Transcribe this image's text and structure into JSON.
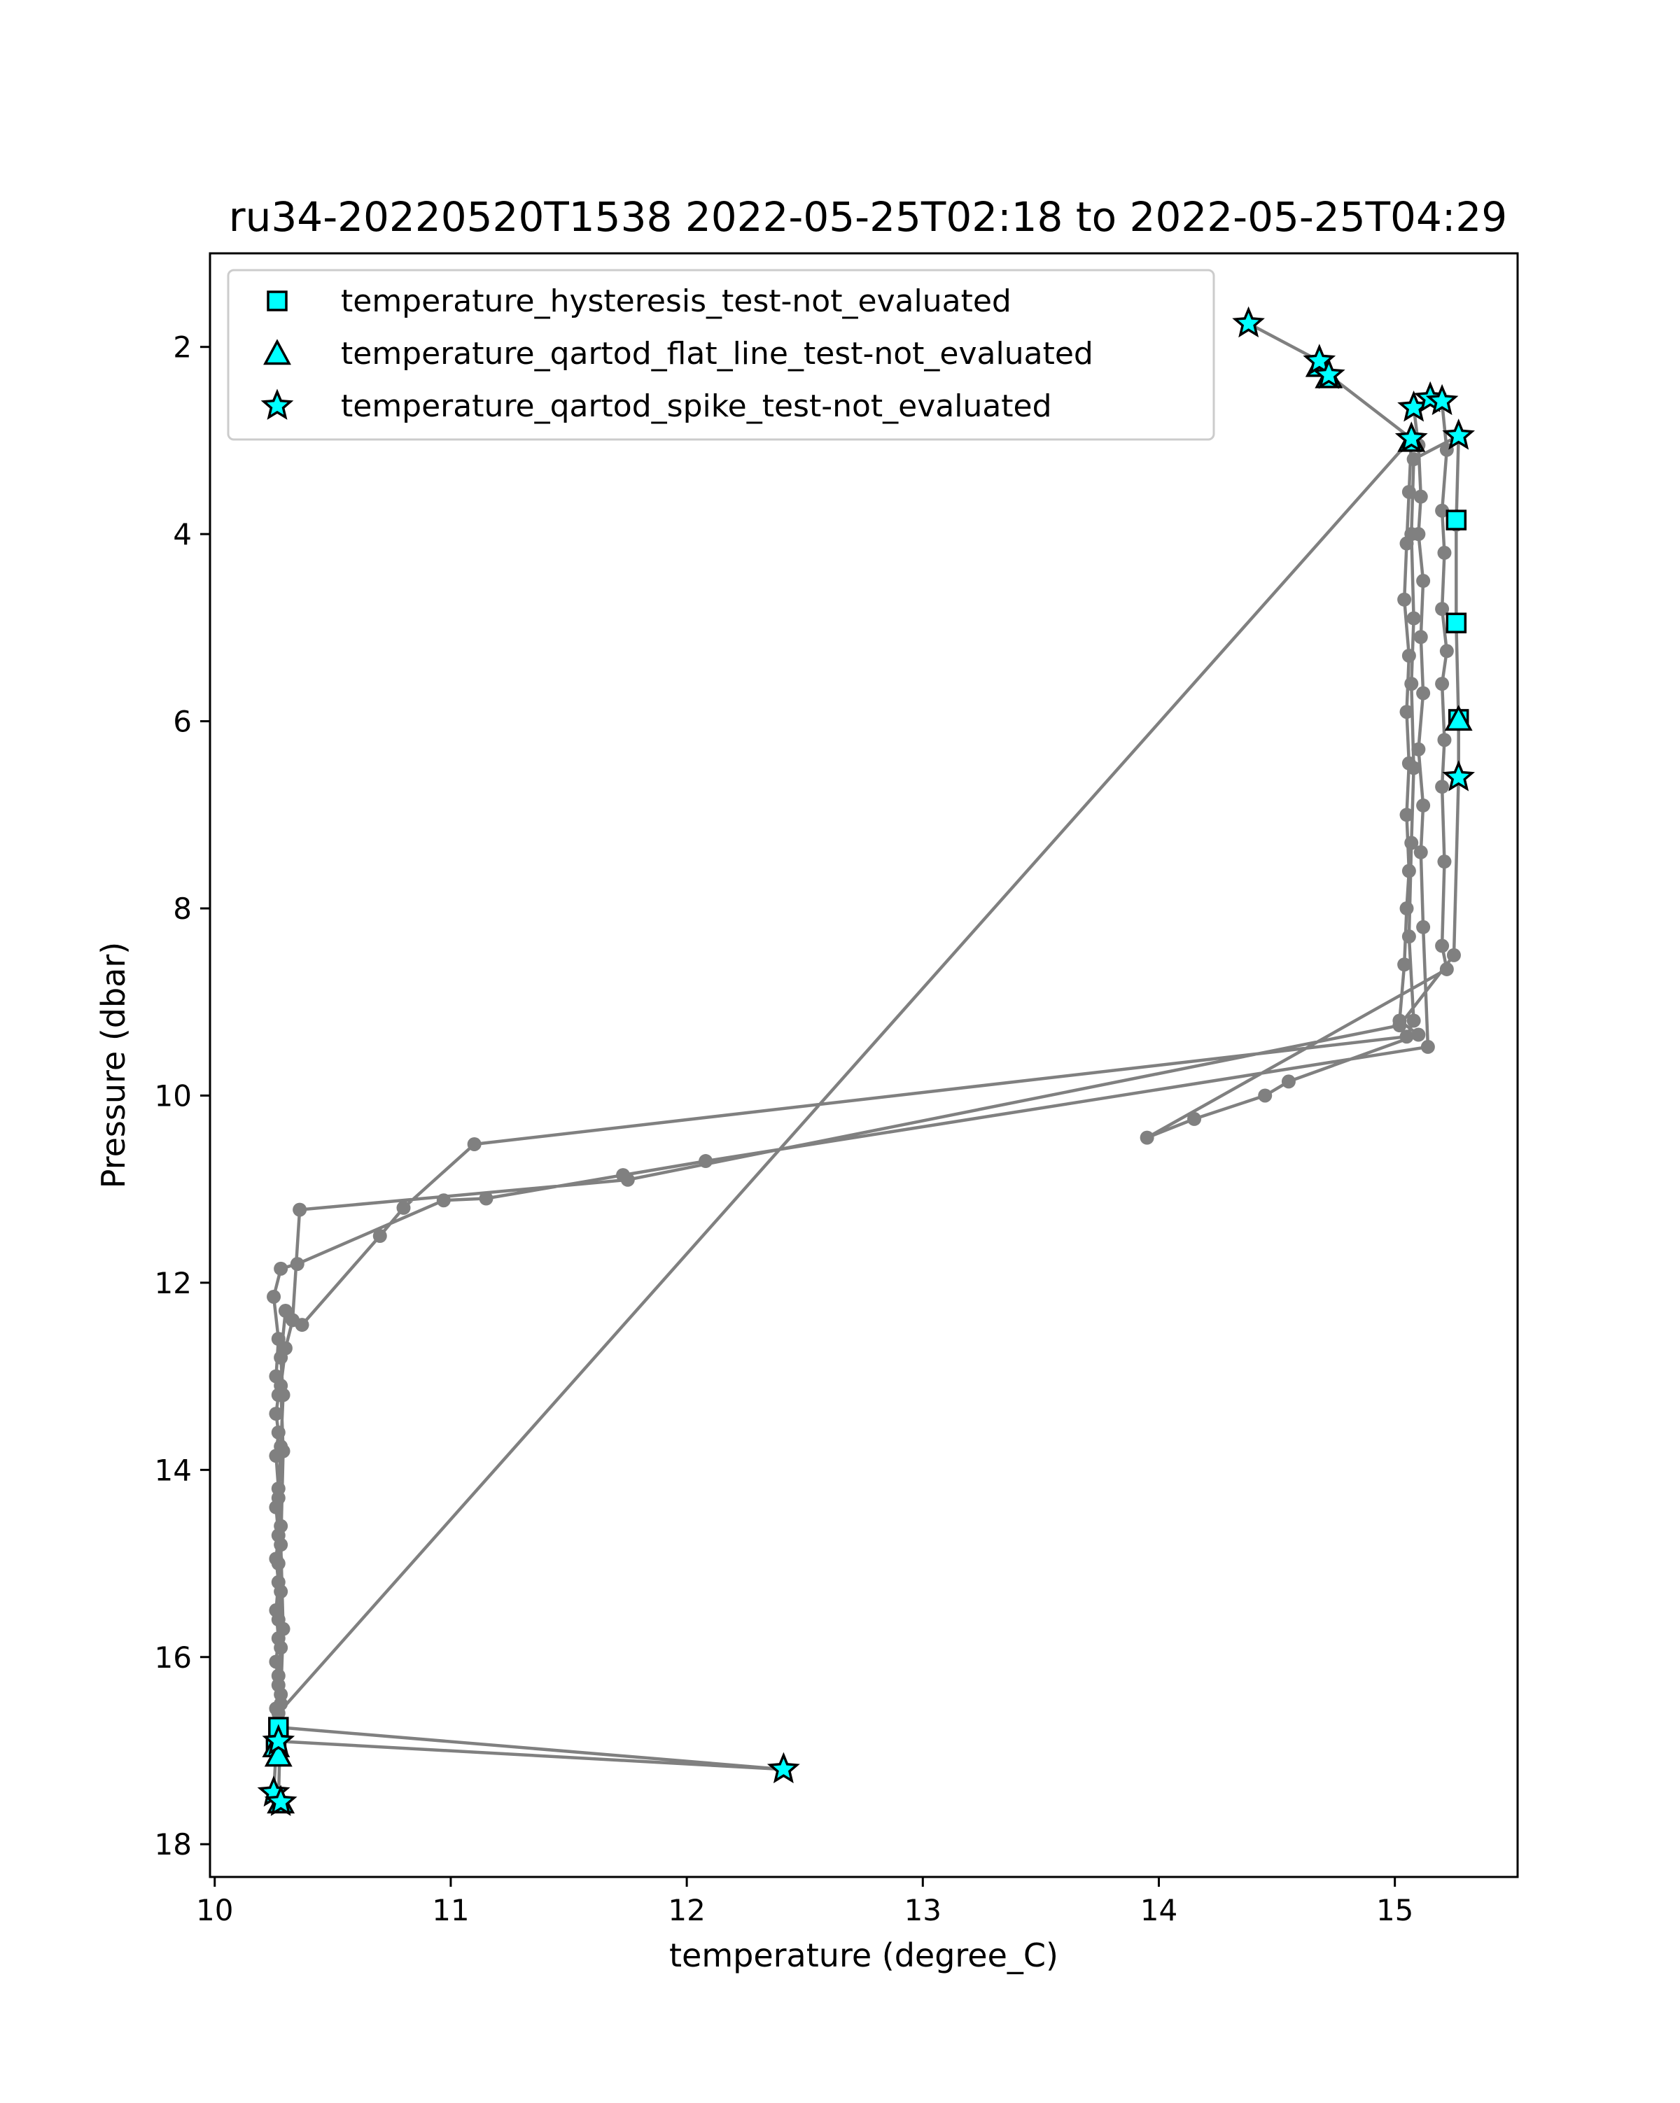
{
  "chart_data": {
    "type": "scatter",
    "title": "ru34-20220520T1538 2022-05-25T02:18 to 2022-05-25T04:29",
    "xlabel": "temperature (degree_C)",
    "ylabel": "Pressure (dbar)",
    "xlim": [
      9.98,
      15.52
    ],
    "ylim": [
      18.35,
      1.0
    ],
    "y_inverted": true,
    "x_ticks": [
      10,
      11,
      12,
      13,
      14,
      15
    ],
    "y_ticks": [
      2,
      4,
      6,
      8,
      10,
      12,
      14,
      16,
      18
    ],
    "grid": false,
    "legend_position": "top-left",
    "colors": {
      "profile": "#808080",
      "marker_fill": "#00ffff",
      "marker_edge": "#000000"
    },
    "profile": {
      "name": "",
      "path": [
        [
          14.38,
          1.75
        ],
        [
          14.68,
          2.15
        ],
        [
          14.72,
          2.3
        ],
        [
          15.07,
          2.98
        ],
        [
          15.06,
          3.55
        ],
        [
          15.05,
          4.1
        ],
        [
          15.04,
          4.7
        ],
        [
          15.06,
          5.3
        ],
        [
          15.05,
          5.9
        ],
        [
          15.06,
          6.45
        ],
        [
          15.05,
          7.0
        ],
        [
          15.06,
          7.6
        ],
        [
          15.05,
          8.0
        ],
        [
          15.04,
          8.6
        ],
        [
          15.02,
          9.2
        ],
        [
          15.1,
          9.35
        ],
        [
          14.55,
          9.85
        ],
        [
          14.45,
          10.0
        ],
        [
          14.15,
          10.25
        ],
        [
          13.95,
          10.45
        ],
        [
          15.22,
          8.65
        ],
        [
          15.2,
          8.4
        ],
        [
          15.21,
          7.5
        ],
        [
          15.2,
          6.7
        ],
        [
          15.21,
          6.2
        ],
        [
          15.2,
          5.6
        ],
        [
          15.22,
          5.25
        ],
        [
          15.2,
          4.8
        ],
        [
          15.21,
          4.2
        ],
        [
          15.2,
          3.75
        ],
        [
          15.22,
          3.1
        ],
        [
          15.2,
          2.6
        ],
        [
          15.15,
          2.55
        ],
        [
          15.08,
          2.65
        ],
        [
          15.1,
          3.05
        ],
        [
          15.11,
          3.6
        ],
        [
          15.1,
          4.0
        ],
        [
          15.12,
          4.5
        ],
        [
          15.11,
          5.1
        ],
        [
          15.12,
          5.7
        ],
        [
          15.1,
          6.3
        ],
        [
          15.12,
          6.9
        ],
        [
          15.11,
          7.4
        ],
        [
          15.12,
          8.2
        ],
        [
          15.14,
          9.48
        ],
        [
          12.08,
          10.7
        ],
        [
          11.73,
          10.85
        ],
        [
          11.15,
          11.1
        ],
        [
          10.97,
          11.12
        ],
        [
          10.35,
          11.8
        ],
        [
          10.28,
          11.85
        ],
        [
          10.25,
          12.15
        ],
        [
          10.27,
          12.6
        ],
        [
          10.26,
          13.0
        ],
        [
          10.27,
          13.2
        ],
        [
          10.26,
          13.4
        ],
        [
          10.27,
          13.6
        ],
        [
          10.26,
          13.85
        ],
        [
          10.27,
          14.2
        ],
        [
          10.26,
          14.4
        ],
        [
          10.27,
          14.7
        ],
        [
          10.26,
          14.95
        ],
        [
          10.27,
          15.2
        ],
        [
          10.26,
          15.5
        ],
        [
          10.27,
          15.8
        ],
        [
          10.26,
          16.05
        ],
        [
          10.27,
          16.3
        ],
        [
          10.26,
          16.55
        ],
        [
          10.27,
          16.75
        ],
        [
          12.41,
          17.2
        ],
        [
          10.27,
          16.9
        ],
        [
          10.26,
          17.0
        ],
        [
          10.25,
          17.45
        ],
        [
          10.27,
          17.55
        ],
        [
          10.28,
          16.5
        ],
        [
          10.27,
          16.2
        ],
        [
          10.28,
          15.9
        ],
        [
          10.27,
          15.6
        ],
        [
          10.28,
          15.3
        ],
        [
          10.27,
          15.0
        ],
        [
          10.28,
          14.6
        ],
        [
          10.27,
          14.3
        ],
        [
          10.28,
          13.75
        ],
        [
          10.29,
          13.2
        ],
        [
          10.28,
          12.8
        ],
        [
          10.3,
          12.3
        ],
        [
          10.37,
          12.45
        ],
        [
          10.7,
          11.5
        ],
        [
          10.8,
          11.2
        ],
        [
          11.1,
          10.52
        ],
        [
          15.05,
          9.37
        ],
        [
          15.08,
          9.2
        ],
        [
          15.06,
          8.3
        ],
        [
          15.07,
          7.3
        ],
        [
          15.08,
          6.5
        ],
        [
          15.07,
          5.6
        ],
        [
          15.08,
          4.9
        ],
        [
          15.07,
          4.0
        ],
        [
          15.08,
          3.2
        ],
        [
          15.27,
          2.95
        ],
        [
          15.26,
          3.9
        ],
        [
          15.26,
          4.95
        ],
        [
          15.27,
          6.0
        ],
        [
          15.27,
          6.6
        ],
        [
          15.25,
          8.5
        ],
        [
          15.02,
          9.25
        ],
        [
          11.75,
          10.9
        ],
        [
          10.36,
          11.22
        ],
        [
          10.33,
          12.4
        ],
        [
          10.3,
          12.7
        ],
        [
          10.28,
          13.1
        ],
        [
          10.29,
          13.8
        ],
        [
          10.28,
          14.8
        ],
        [
          10.29,
          15.7
        ],
        [
          10.28,
          16.4
        ],
        [
          10.27,
          16.6
        ],
        [
          15.07,
          2.98
        ]
      ]
    },
    "series": [
      {
        "name": "temperature_hysteresis_test-not_evaluated",
        "marker": "square",
        "x": [
          15.26,
          15.26,
          15.27,
          10.27,
          10.26
        ],
        "y": [
          3.85,
          4.95,
          5.98,
          16.75,
          16.95
        ]
      },
      {
        "name": "temperature_qartod_flat_line_test-not_evaluated",
        "marker": "triangle",
        "x": [
          15.27,
          10.26,
          10.27,
          10.28,
          14.68,
          14.72,
          15.07
        ],
        "y": [
          5.98,
          16.95,
          17.05,
          17.55,
          2.2,
          2.32,
          3.0
        ]
      },
      {
        "name": "temperature_qartod_spike_test-not_evaluated",
        "marker": "star",
        "x": [
          14.38,
          14.68,
          14.72,
          15.08,
          15.15,
          15.2,
          15.07,
          15.27,
          15.27,
          10.27,
          10.25,
          10.28,
          12.41
        ],
        "y": [
          1.75,
          2.15,
          2.3,
          2.65,
          2.55,
          2.58,
          2.98,
          2.95,
          6.6,
          16.9,
          17.45,
          17.55,
          17.2
        ]
      }
    ]
  }
}
